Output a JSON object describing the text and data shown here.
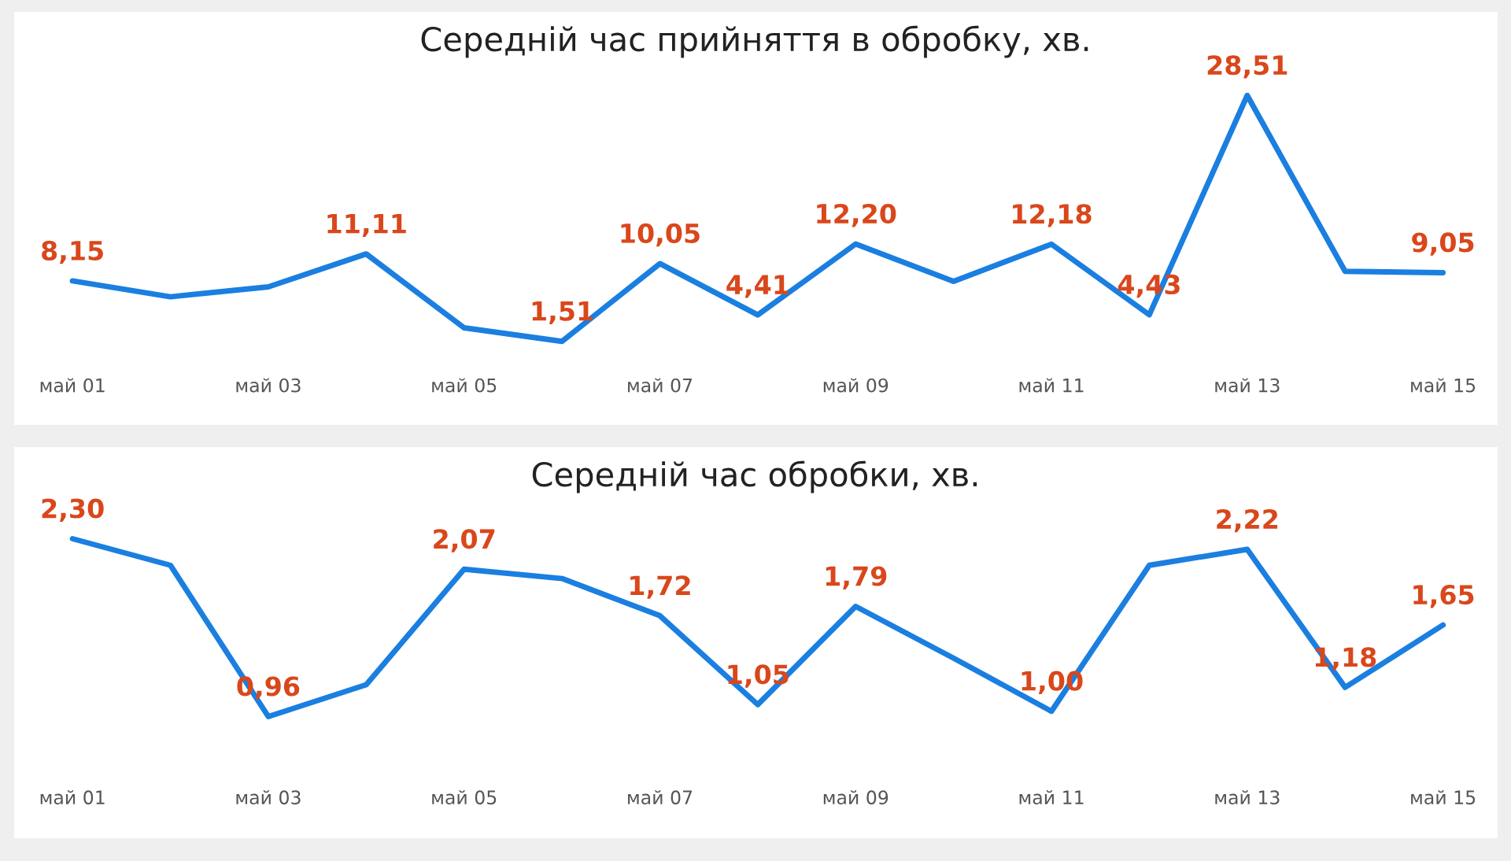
{
  "chart_data": [
    {
      "type": "line",
      "title": "Середній час прийняття в обробку, хв.",
      "categories": [
        "май 01",
        null,
        "май 03",
        null,
        "май 05",
        null,
        "май 07",
        null,
        "май 09",
        null,
        "май 11",
        null,
        "май 13",
        null,
        "май 15"
      ],
      "series": [
        {
          "color": "#1a7fe0",
          "values": [
            8.15,
            6.4,
            7.5,
            11.11,
            3.0,
            1.51,
            10.05,
            4.41,
            12.2,
            8.1,
            12.18,
            4.43,
            28.51,
            9.2,
            9.05
          ],
          "value_labels": [
            "8,15",
            null,
            null,
            "11,11",
            null,
            "1,51",
            "10,05",
            "4,41",
            "12,20",
            null,
            "12,18",
            "4,43",
            "28,51",
            null,
            "9,05"
          ]
        }
      ],
      "grid": false,
      "legend": false,
      "marker": "none",
      "line_style": "solid",
      "tick_labels": "x"
    },
    {
      "type": "line",
      "title": "Середній час обробки, хв.",
      "categories": [
        "май 01",
        null,
        "май 03",
        null,
        "май 05",
        null,
        "май 07",
        null,
        "май 09",
        null,
        "май 11",
        null,
        "май 13",
        null,
        "май 15"
      ],
      "series": [
        {
          "color": "#1a7fe0",
          "values": [
            2.3,
            2.1,
            0.96,
            1.2,
            2.07,
            2.0,
            1.72,
            1.05,
            1.79,
            1.4,
            1.0,
            2.1,
            2.22,
            1.18,
            1.65
          ],
          "value_labels": [
            "2,30",
            null,
            "0,96",
            null,
            "2,07",
            null,
            "1,72",
            "1,05",
            "1,79",
            null,
            "1,00",
            null,
            "2,22",
            "1,18",
            "1,65"
          ]
        }
      ],
      "grid": false,
      "legend": false,
      "marker": "none",
      "line_style": "solid",
      "tick_labels": "x"
    }
  ]
}
